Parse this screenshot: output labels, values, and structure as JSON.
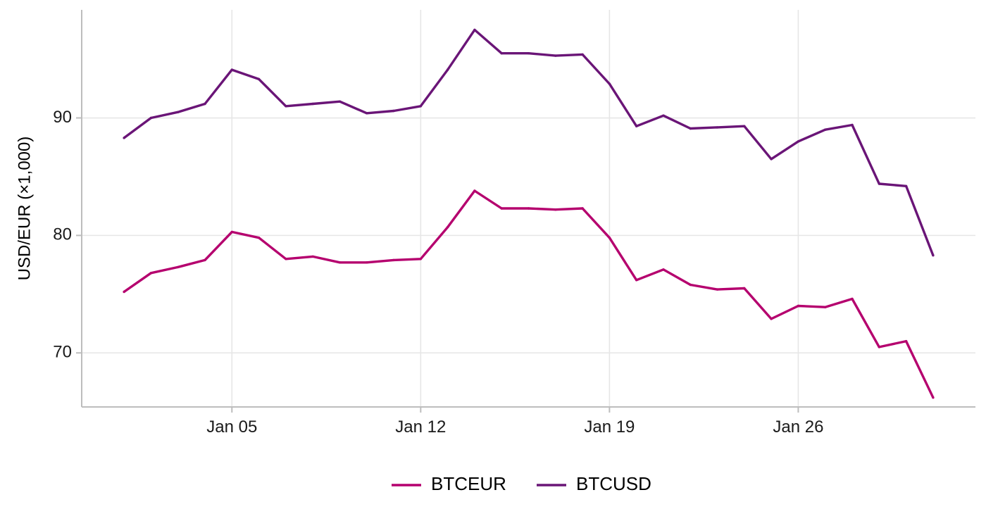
{
  "chart_data": {
    "type": "line",
    "title": "",
    "xlabel": "",
    "ylabel": "USD/EUR (×1,000)",
    "x": [
      "2025-01-01",
      "2025-01-02",
      "2025-01-03",
      "2025-01-04",
      "2025-01-05",
      "2025-01-06",
      "2025-01-07",
      "2025-01-08",
      "2025-01-09",
      "2025-01-10",
      "2025-01-11",
      "2025-01-12",
      "2025-01-13",
      "2025-01-14",
      "2025-01-15",
      "2025-01-16",
      "2025-01-17",
      "2025-01-18",
      "2025-01-19",
      "2025-01-20",
      "2025-01-21",
      "2025-01-22",
      "2025-01-23",
      "2025-01-24",
      "2025-01-25",
      "2025-01-26",
      "2025-01-27",
      "2025-01-28",
      "2025-01-29",
      "2025-01-30",
      "2025-01-31"
    ],
    "x_ticks": [
      {
        "date": "2025-01-05",
        "label": "Jan 05"
      },
      {
        "date": "2025-01-12",
        "label": "Jan 12"
      },
      {
        "date": "2025-01-19",
        "label": "Jan 19"
      },
      {
        "date": "2025-01-26",
        "label": "Jan 26"
      }
    ],
    "y_ticks": [
      70,
      80,
      90
    ],
    "ylim": [
      65.4,
      99.2
    ],
    "grid": true,
    "legend_position": "bottom",
    "series": [
      {
        "name": "BTCEUR",
        "color": "#b5006e",
        "values": [
          75.2,
          76.8,
          77.3,
          77.9,
          80.3,
          79.8,
          78.0,
          78.2,
          77.7,
          77.7,
          77.9,
          78.0,
          80.7,
          83.8,
          82.3,
          82.3,
          82.2,
          82.3,
          79.8,
          76.2,
          77.1,
          75.8,
          75.4,
          75.5,
          72.9,
          74.0,
          73.9,
          74.6,
          70.5,
          71.0,
          66.2
        ]
      },
      {
        "name": "BTCUSD",
        "color": "#6a1577",
        "values": [
          88.3,
          90.0,
          90.5,
          91.2,
          94.1,
          93.3,
          91.0,
          91.2,
          91.4,
          90.4,
          90.6,
          91.0,
          94.1,
          97.5,
          95.5,
          95.5,
          95.3,
          95.4,
          92.9,
          89.3,
          90.2,
          89.1,
          89.2,
          89.3,
          86.5,
          88.0,
          89.0,
          89.4,
          84.4,
          84.2,
          78.3
        ]
      }
    ]
  }
}
